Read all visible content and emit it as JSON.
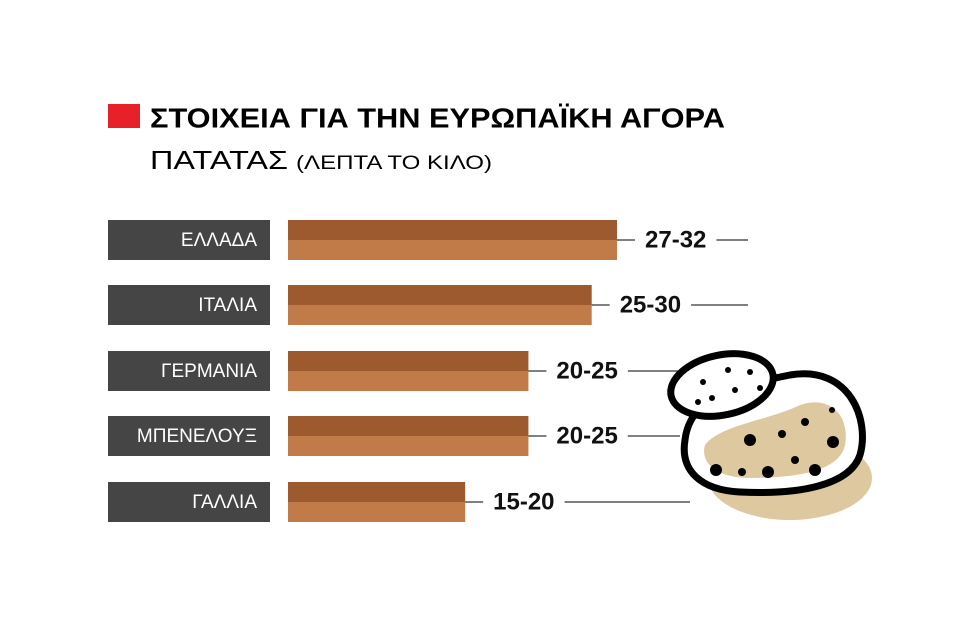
{
  "chart_data": {
    "type": "bar",
    "title": "ΣΤΟΙΧΕΙΑ ΓΙΑ ΤΗΝ ΕΥΡΩΠΑΪΚΗ ΑΓΟΡΑ",
    "subtitle": "ΠΑΤΑΤΑΣ",
    "unit": "(ΛΕΠΤΑ ΤΟ ΚΙΛΟ)",
    "categories": [
      "ΕΛΛΑΔΑ",
      "ΙΤΑΛΙΑ",
      "ΓΕΡΜΑΝΙΑ",
      "ΜΠΕΝΕΛΟΥΞ",
      "ΓΑΛΛΙΑ"
    ],
    "low_values": [
      27,
      25,
      20,
      20,
      15
    ],
    "values": [
      32,
      30,
      25,
      25,
      20
    ],
    "value_labels": [
      "27-32",
      "25-30",
      "20-25",
      "20-25",
      "15-20"
    ],
    "xlim": [
      6,
      32
    ],
    "colors": [
      "#9c5a2e",
      "#c17b48"
    ],
    "label_box_color": "#454545"
  }
}
